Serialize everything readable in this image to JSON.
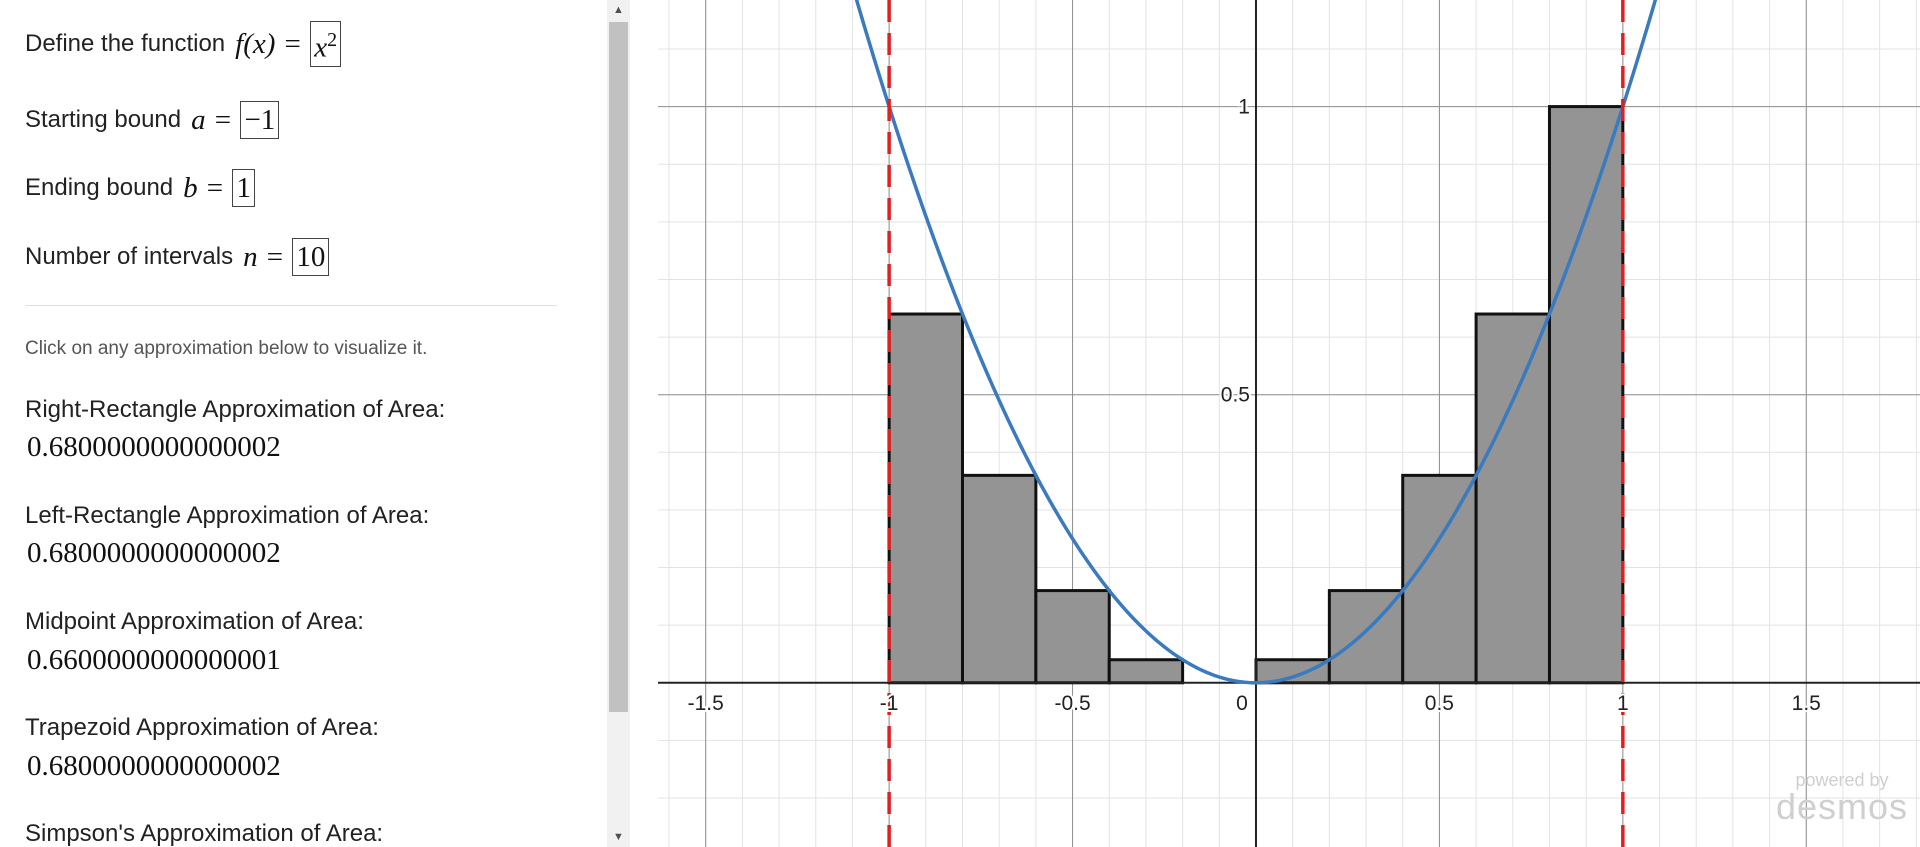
{
  "inputs": {
    "function": {
      "label": "Define the function",
      "lhs": "f(x) =",
      "base": "x",
      "exponent": "2"
    },
    "start": {
      "label": "Starting bound",
      "lhs": "a =",
      "value": "−1"
    },
    "end": {
      "label": "Ending bound",
      "lhs": "b =",
      "value": "1"
    },
    "intervals": {
      "label": "Number of intervals",
      "lhs": "n =",
      "value": "10"
    }
  },
  "hint": "Click on any approximation below to visualize it.",
  "approximations": [
    {
      "label": "Right-Rectangle Approximation of Area:",
      "value": "0.6800000000000002"
    },
    {
      "label": "Left-Rectangle Approximation of Area:",
      "value": "0.6800000000000002"
    },
    {
      "label": "Midpoint Approximation of Area:",
      "value": "0.6600000000000001"
    },
    {
      "label": "Trapezoid Approximation of Area:",
      "value": "0.6800000000000002"
    },
    {
      "label": "Simpson's Approximation of Area:",
      "value": ""
    }
  ],
  "scrollbar": {
    "up_glyph": "▲",
    "down_glyph": "▼"
  },
  "watermark": {
    "line1": "powered by",
    "line2": "desmos"
  },
  "chart_data": {
    "type": "bar",
    "function": "x^2",
    "a": -1,
    "b": 1,
    "n": 10,
    "rectangles": [
      {
        "x0": -1.0,
        "x1": -0.8,
        "height": 0.64
      },
      {
        "x0": -0.8,
        "x1": -0.6,
        "height": 0.36
      },
      {
        "x0": -0.6,
        "x1": -0.4,
        "height": 0.16
      },
      {
        "x0": -0.4,
        "x1": -0.2,
        "height": 0.04
      },
      {
        "x0": -0.2,
        "x1": 0.0,
        "height": 0.0
      },
      {
        "x0": 0.0,
        "x1": 0.2,
        "height": 0.04
      },
      {
        "x0": 0.2,
        "x1": 0.4,
        "height": 0.16
      },
      {
        "x0": 0.4,
        "x1": 0.6,
        "height": 0.36
      },
      {
        "x0": 0.6,
        "x1": 0.8,
        "height": 0.64
      },
      {
        "x0": 0.8,
        "x1": 1.0,
        "height": 1.0
      }
    ],
    "xlim": [
      -1.63,
      1.81
    ],
    "ylim": [
      -0.285,
      1.185
    ],
    "x_ticks": [
      {
        "value": -1.5,
        "label": "-1.5"
      },
      {
        "value": -1,
        "label": "-1"
      },
      {
        "value": -0.5,
        "label": "-0.5"
      },
      {
        "value": 0,
        "label": "0"
      },
      {
        "value": 0.5,
        "label": "0.5"
      },
      {
        "value": 1,
        "label": "1"
      },
      {
        "value": 1.5,
        "label": "1.5"
      }
    ],
    "y_ticks": [
      {
        "value": 0.5,
        "label": "0.5"
      },
      {
        "value": 1,
        "label": "1"
      }
    ],
    "minor_step": 0.1,
    "major_step": 0.5,
    "grid": true,
    "colors": {
      "curve": "#3a7abf",
      "bounds": "#e02020",
      "rect_fill": "#949494",
      "rect_stroke": "#111111",
      "major_grid": "#8f8f8f",
      "minor_grid": "#e3e3e3",
      "axis": "#222222"
    }
  }
}
